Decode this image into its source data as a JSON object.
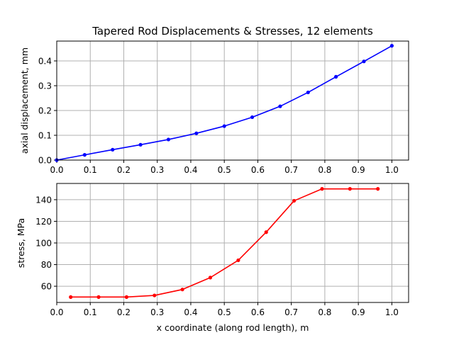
{
  "chart_data": [
    {
      "type": "line",
      "title": "Tapered Rod Displacements & Stresses, 12 elements",
      "xlabel": "",
      "ylabel": "axial displacement, mm",
      "xlim": [
        0.0,
        1.05
      ],
      "ylim": [
        0.0,
        0.48
      ],
      "xticks": [
        "0.0",
        "0.1",
        "0.2",
        "0.3",
        "0.4",
        "0.5",
        "0.6",
        "0.7",
        "0.8",
        "0.9",
        "1.0"
      ],
      "yticks": [
        "0.0",
        "0.1",
        "0.2",
        "0.3",
        "0.4"
      ],
      "grid": true,
      "series": [
        {
          "color": "#0000ff",
          "marker": "dot",
          "x": [
            0.0,
            0.0833,
            0.1667,
            0.25,
            0.3333,
            0.4167,
            0.5,
            0.5833,
            0.6667,
            0.75,
            0.8333,
            0.9167,
            1.0
          ],
          "y": [
            0.0,
            0.021,
            0.042,
            0.062,
            0.083,
            0.108,
            0.137,
            0.173,
            0.217,
            0.273,
            0.336,
            0.398,
            0.461
          ]
        }
      ]
    },
    {
      "type": "line",
      "title": "",
      "xlabel": "x coordinate (along rod length), m",
      "ylabel": "stress, MPa",
      "xlim": [
        0.0,
        1.05
      ],
      "ylim": [
        45,
        155
      ],
      "xticks": [
        "0.0",
        "0.1",
        "0.2",
        "0.3",
        "0.4",
        "0.5",
        "0.6",
        "0.7",
        "0.8",
        "0.9",
        "1.0"
      ],
      "yticks": [
        "60",
        "80",
        "100",
        "120",
        "140"
      ],
      "grid": true,
      "series": [
        {
          "color": "#ff0000",
          "marker": "dot",
          "x": [
            0.0417,
            0.125,
            0.2083,
            0.2917,
            0.375,
            0.4583,
            0.5417,
            0.625,
            0.7083,
            0.7917,
            0.875,
            0.9583
          ],
          "y": [
            50,
            50,
            50,
            51.5,
            57,
            68,
            84,
            110,
            139,
            150,
            150,
            150
          ]
        }
      ]
    }
  ]
}
